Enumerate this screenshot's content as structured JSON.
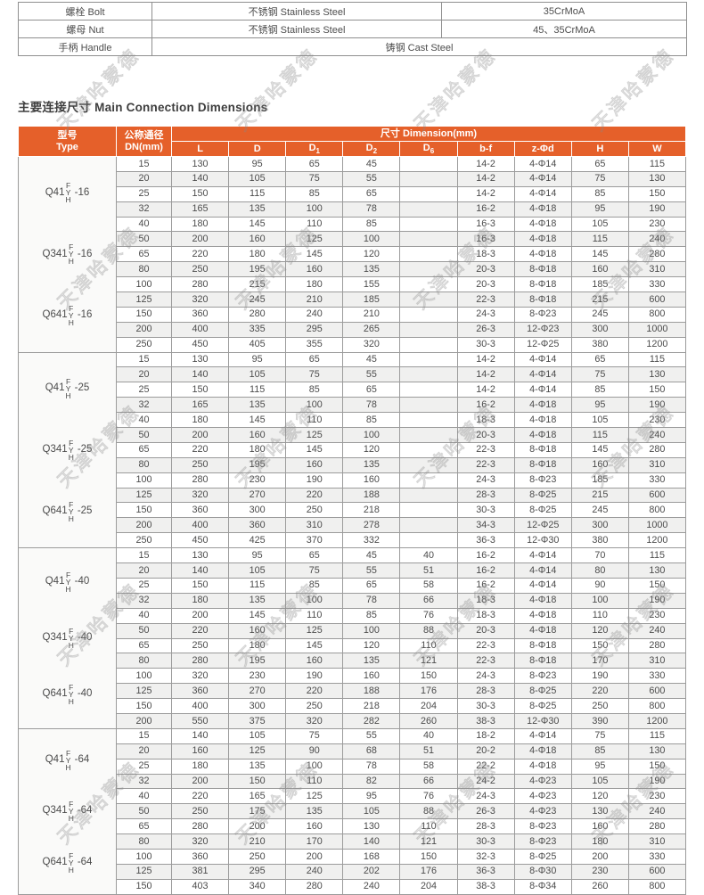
{
  "watermark": {
    "text": "天津哈蒙德"
  },
  "materials_table": {
    "rows": [
      {
        "name": "螺栓 Bolt",
        "material": "不锈钢 Stainless Steel",
        "grade": "35CrMoA"
      },
      {
        "name": "螺母 Nut",
        "material": "不锈钢 Stainless Steel",
        "grade": "45、35CrMoA"
      },
      {
        "name": "手柄 Handle",
        "material": "铸钢 Cast Steel"
      }
    ]
  },
  "section": {
    "heading": "主要连接尺寸 Main Connection Dimensions"
  },
  "dimension_table": {
    "header": {
      "type_line1": "型号",
      "type_line2": "Type",
      "dn_line1": "公称通径",
      "dn_line2": "DN(mm)",
      "dimension": "尺寸 Dimension(mm)",
      "sub_cols": [
        "L",
        "D",
        "D1",
        "D2",
        "D6",
        "b-f",
        "z-Φd",
        "H",
        "W"
      ]
    },
    "groups": [
      {
        "models": [
          {
            "prefix": "Q41",
            "letters": [
              "F",
              "Y",
              "H"
            ],
            "suffix": "-16"
          },
          {
            "prefix": "Q341",
            "letters": [
              "F",
              "Y",
              "H"
            ],
            "suffix": "-16"
          },
          {
            "prefix": "Q641",
            "letters": [
              "F",
              "Y",
              "H"
            ],
            "suffix": "-16"
          }
        ],
        "rows": [
          {
            "dn": "15",
            "dims": [
              "130",
              "95",
              "65",
              "45",
              "",
              "14-2",
              "4-Φ14",
              "65",
              "115"
            ]
          },
          {
            "dn": "20",
            "dims": [
              "140",
              "105",
              "75",
              "55",
              "",
              "14-2",
              "4-Φ14",
              "75",
              "130"
            ]
          },
          {
            "dn": "25",
            "dims": [
              "150",
              "115",
              "85",
              "65",
              "",
              "14-2",
              "4-Φ14",
              "85",
              "150"
            ]
          },
          {
            "dn": "32",
            "dims": [
              "165",
              "135",
              "100",
              "78",
              "",
              "16-2",
              "4-Φ18",
              "95",
              "190"
            ]
          },
          {
            "dn": "40",
            "dims": [
              "180",
              "145",
              "110",
              "85",
              "",
              "16-3",
              "4-Φ18",
              "105",
              "230"
            ]
          },
          {
            "dn": "50",
            "dims": [
              "200",
              "160",
              "125",
              "100",
              "",
              "16-3",
              "4-Φ18",
              "115",
              "240"
            ]
          },
          {
            "dn": "65",
            "dims": [
              "220",
              "180",
              "145",
              "120",
              "",
              "18-3",
              "4-Φ18",
              "145",
              "280"
            ]
          },
          {
            "dn": "80",
            "dims": [
              "250",
              "195",
              "160",
              "135",
              "",
              "20-3",
              "8-Φ18",
              "160",
              "310"
            ]
          },
          {
            "dn": "100",
            "dims": [
              "280",
              "215",
              "180",
              "155",
              "",
              "20-3",
              "8-Φ18",
              "185",
              "330"
            ]
          },
          {
            "dn": "125",
            "dims": [
              "320",
              "245",
              "210",
              "185",
              "",
              "22-3",
              "8-Φ18",
              "215",
              "600"
            ]
          },
          {
            "dn": "150",
            "dims": [
              "360",
              "280",
              "240",
              "210",
              "",
              "24-3",
              "8-Φ23",
              "245",
              "800"
            ]
          },
          {
            "dn": "200",
            "dims": [
              "400",
              "335",
              "295",
              "265",
              "",
              "26-3",
              "12-Φ23",
              "300",
              "1000"
            ]
          },
          {
            "dn": "250",
            "dims": [
              "450",
              "405",
              "355",
              "320",
              "",
              "30-3",
              "12-Φ25",
              "380",
              "1200"
            ]
          }
        ]
      },
      {
        "models": [
          {
            "prefix": "Q41",
            "letters": [
              "F",
              "Y",
              "H"
            ],
            "suffix": "-25"
          },
          {
            "prefix": "Q341",
            "letters": [
              "F",
              "Y",
              "H"
            ],
            "suffix": "-25"
          },
          {
            "prefix": "Q641",
            "letters": [
              "F",
              "Y",
              "H"
            ],
            "suffix": "-25"
          }
        ],
        "rows": [
          {
            "dn": "15",
            "dims": [
              "130",
              "95",
              "65",
              "45",
              "",
              "14-2",
              "4-Φ14",
              "65",
              "115"
            ]
          },
          {
            "dn": "20",
            "dims": [
              "140",
              "105",
              "75",
              "55",
              "",
              "14-2",
              "4-Φ14",
              "75",
              "130"
            ]
          },
          {
            "dn": "25",
            "dims": [
              "150",
              "115",
              "85",
              "65",
              "",
              "14-2",
              "4-Φ14",
              "85",
              "150"
            ]
          },
          {
            "dn": "32",
            "dims": [
              "165",
              "135",
              "100",
              "78",
              "",
              "16-2",
              "4-Φ18",
              "95",
              "190"
            ]
          },
          {
            "dn": "40",
            "dims": [
              "180",
              "145",
              "110",
              "85",
              "",
              "18-3",
              "4-Φ18",
              "105",
              "230"
            ]
          },
          {
            "dn": "50",
            "dims": [
              "200",
              "160",
              "125",
              "100",
              "",
              "20-3",
              "4-Φ18",
              "115",
              "240"
            ]
          },
          {
            "dn": "65",
            "dims": [
              "220",
              "180",
              "145",
              "120",
              "",
              "22-3",
              "8-Φ18",
              "145",
              "280"
            ]
          },
          {
            "dn": "80",
            "dims": [
              "250",
              "195",
              "160",
              "135",
              "",
              "22-3",
              "8-Φ18",
              "160",
              "310"
            ]
          },
          {
            "dn": "100",
            "dims": [
              "280",
              "230",
              "190",
              "160",
              "",
              "24-3",
              "8-Φ23",
              "185",
              "330"
            ]
          },
          {
            "dn": "125",
            "dims": [
              "320",
              "270",
              "220",
              "188",
              "",
              "28-3",
              "8-Φ25",
              "215",
              "600"
            ]
          },
          {
            "dn": "150",
            "dims": [
              "360",
              "300",
              "250",
              "218",
              "",
              "30-3",
              "8-Φ25",
              "245",
              "800"
            ]
          },
          {
            "dn": "200",
            "dims": [
              "400",
              "360",
              "310",
              "278",
              "",
              "34-3",
              "12-Φ25",
              "300",
              "1000"
            ]
          },
          {
            "dn": "250",
            "dims": [
              "450",
              "425",
              "370",
              "332",
              "",
              "36-3",
              "12-Φ30",
              "380",
              "1200"
            ]
          }
        ]
      },
      {
        "models": [
          {
            "prefix": "Q41",
            "letters": [
              "F",
              "Y",
              "H"
            ],
            "suffix": "-40"
          },
          {
            "prefix": "Q341",
            "letters": [
              "F",
              "Y",
              "H"
            ],
            "suffix": "-40"
          },
          {
            "prefix": "Q641",
            "letters": [
              "F",
              "Y",
              "H"
            ],
            "suffix": "-40"
          }
        ],
        "rows": [
          {
            "dn": "15",
            "dims": [
              "130",
              "95",
              "65",
              "45",
              "40",
              "16-2",
              "4-Φ14",
              "70",
              "115"
            ]
          },
          {
            "dn": "20",
            "dims": [
              "140",
              "105",
              "75",
              "55",
              "51",
              "16-2",
              "4-Φ14",
              "80",
              "130"
            ]
          },
          {
            "dn": "25",
            "dims": [
              "150",
              "115",
              "85",
              "65",
              "58",
              "16-2",
              "4-Φ14",
              "90",
              "150"
            ]
          },
          {
            "dn": "32",
            "dims": [
              "180",
              "135",
              "100",
              "78",
              "66",
              "18-3",
              "4-Φ18",
              "100",
              "190"
            ]
          },
          {
            "dn": "40",
            "dims": [
              "200",
              "145",
              "110",
              "85",
              "76",
              "18-3",
              "4-Φ18",
              "110",
              "230"
            ]
          },
          {
            "dn": "50",
            "dims": [
              "220",
              "160",
              "125",
              "100",
              "88",
              "20-3",
              "4-Φ18",
              "120",
              "240"
            ]
          },
          {
            "dn": "65",
            "dims": [
              "250",
              "180",
              "145",
              "120",
              "110",
              "22-3",
              "8-Φ18",
              "150",
              "280"
            ]
          },
          {
            "dn": "80",
            "dims": [
              "280",
              "195",
              "160",
              "135",
              "121",
              "22-3",
              "8-Φ18",
              "170",
              "310"
            ]
          },
          {
            "dn": "100",
            "dims": [
              "320",
              "230",
              "190",
              "160",
              "150",
              "24-3",
              "8-Φ23",
              "190",
              "330"
            ]
          },
          {
            "dn": "125",
            "dims": [
              "360",
              "270",
              "220",
              "188",
              "176",
              "28-3",
              "8-Φ25",
              "220",
              "600"
            ]
          },
          {
            "dn": "150",
            "dims": [
              "400",
              "300",
              "250",
              "218",
              "204",
              "30-3",
              "8-Φ25",
              "250",
              "800"
            ]
          },
          {
            "dn": "200",
            "dims": [
              "550",
              "375",
              "320",
              "282",
              "260",
              "38-3",
              "12-Φ30",
              "390",
              "1200"
            ]
          }
        ]
      },
      {
        "models": [
          {
            "prefix": "Q41",
            "letters": [
              "F",
              "Y",
              "H"
            ],
            "suffix": "-64"
          },
          {
            "prefix": "Q341",
            "letters": [
              "F",
              "Y",
              "H"
            ],
            "suffix": "-64"
          },
          {
            "prefix": "Q641",
            "letters": [
              "F",
              "Y",
              "H"
            ],
            "suffix": "-64"
          }
        ],
        "rows": [
          {
            "dn": "15",
            "dims": [
              "140",
              "105",
              "75",
              "55",
              "40",
              "18-2",
              "4-Φ14",
              "75",
              "115"
            ]
          },
          {
            "dn": "20",
            "dims": [
              "160",
              "125",
              "90",
              "68",
              "51",
              "20-2",
              "4-Φ18",
              "85",
              "130"
            ]
          },
          {
            "dn": "25",
            "dims": [
              "180",
              "135",
              "100",
              "78",
              "58",
              "22-2",
              "4-Φ18",
              "95",
              "150"
            ]
          },
          {
            "dn": "32",
            "dims": [
              "200",
              "150",
              "110",
              "82",
              "66",
              "24-2",
              "4-Φ23",
              "105",
              "190"
            ]
          },
          {
            "dn": "40",
            "dims": [
              "220",
              "165",
              "125",
              "95",
              "76",
              "24-3",
              "4-Φ23",
              "120",
              "230"
            ]
          },
          {
            "dn": "50",
            "dims": [
              "250",
              "175",
              "135",
              "105",
              "88",
              "26-3",
              "4-Φ23",
              "130",
              "240"
            ]
          },
          {
            "dn": "65",
            "dims": [
              "280",
              "200",
              "160",
              "130",
              "110",
              "28-3",
              "8-Φ23",
              "160",
              "280"
            ]
          },
          {
            "dn": "80",
            "dims": [
              "320",
              "210",
              "170",
              "140",
              "121",
              "30-3",
              "8-Φ23",
              "180",
              "310"
            ]
          },
          {
            "dn": "100",
            "dims": [
              "360",
              "250",
              "200",
              "168",
              "150",
              "32-3",
              "8-Φ25",
              "200",
              "330"
            ]
          },
          {
            "dn": "125",
            "dims": [
              "381",
              "295",
              "240",
              "202",
              "176",
              "36-3",
              "8-Φ30",
              "230",
              "600"
            ]
          },
          {
            "dn": "150",
            "dims": [
              "403",
              "340",
              "280",
              "240",
              "204",
              "38-3",
              "8-Φ34",
              "260",
              "800"
            ]
          }
        ]
      }
    ]
  },
  "colors": {
    "header_bg": "#E5602A",
    "stripe": "#f0f0ef",
    "border": "#9b9b9b",
    "text": "#4c4c4c"
  }
}
